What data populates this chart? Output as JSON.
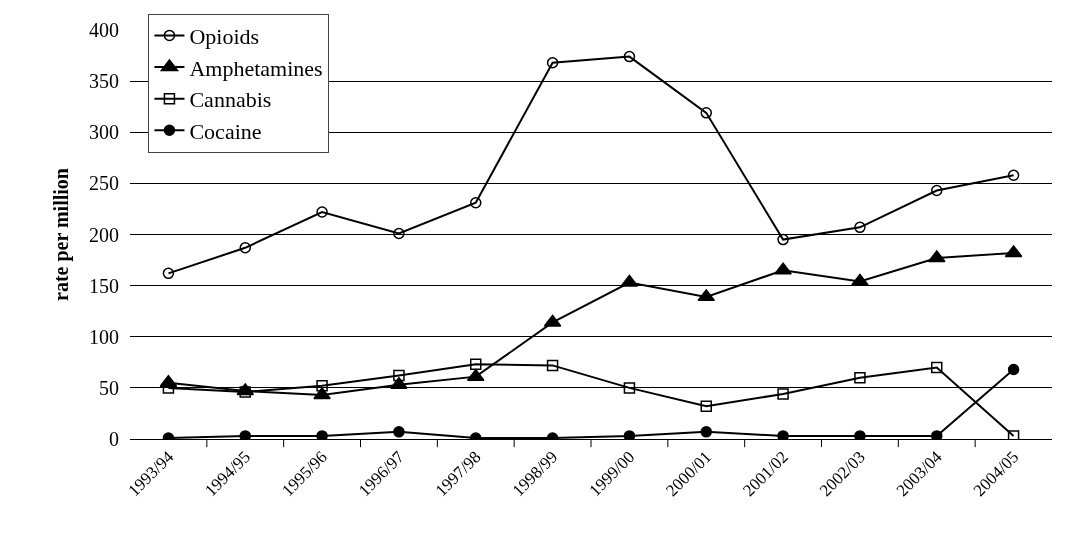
{
  "chart_data": {
    "type": "line",
    "ylabel": "rate per million",
    "categories": [
      "1993/94",
      "1994/95",
      "1995/96",
      "1996/97",
      "1997/98",
      "1998/99",
      "1999/00",
      "2000/01",
      "2001/02",
      "2002/03",
      "2003/04",
      "2004/05"
    ],
    "series": [
      {
        "name": "Opioids",
        "color": "#000000",
        "marker": "circle-open",
        "values": [
          162,
          187,
          222,
          201,
          231,
          368,
          374,
          319,
          195,
          207,
          243,
          258
        ]
      },
      {
        "name": "Amphetamines",
        "color": "#000000",
        "marker": "triangle",
        "values": [
          55,
          47,
          43,
          53,
          61,
          114,
          153,
          139,
          165,
          154,
          177,
          182
        ]
      },
      {
        "name": "Cannabis",
        "color": "#000000",
        "marker": "square-open",
        "values": [
          50,
          46,
          52,
          62,
          73,
          72,
          50,
          32,
          44,
          60,
          70,
          3
        ]
      },
      {
        "name": "Cocaine",
        "color": "#000000",
        "marker": "circle",
        "values": [
          1,
          3,
          3,
          7,
          1,
          1,
          3,
          7,
          3,
          3,
          3,
          68
        ]
      }
    ],
    "ylim": [
      0,
      400
    ],
    "yticks": [
      0,
      50,
      100,
      150,
      200,
      250,
      300,
      350,
      400
    ],
    "grid": "y",
    "legend": "top left",
    "line_style": "solid"
  }
}
